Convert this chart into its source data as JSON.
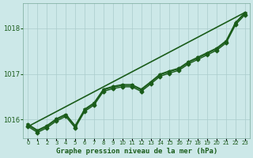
{
  "title": "Graphe pression niveau de la mer (hPa)",
  "background_color": "#cce8e8",
  "grid_color": "#aacccc",
  "line_color": "#1a5c1a",
  "text_color": "#1a5c1a",
  "xlim": [
    -0.5,
    23.5
  ],
  "ylim": [
    1015.6,
    1018.55
  ],
  "yticks": [
    1016,
    1017,
    1018
  ],
  "xticks": [
    0,
    1,
    2,
    3,
    4,
    5,
    6,
    7,
    8,
    9,
    10,
    11,
    12,
    13,
    14,
    15,
    16,
    17,
    18,
    19,
    20,
    21,
    22,
    23
  ],
  "series": [
    {
      "x": [
        0,
        1,
        2,
        3,
        4,
        5,
        6,
        7,
        8,
        9,
        10,
        11,
        12,
        13,
        14,
        15,
        16,
        17,
        18,
        19,
        20,
        21,
        22,
        23
      ],
      "y": [
        1015.85,
        1015.72,
        1015.82,
        1015.97,
        1016.07,
        1015.82,
        1016.18,
        1016.32,
        1016.62,
        1016.68,
        1016.72,
        1016.72,
        1016.62,
        1016.78,
        1016.95,
        1017.02,
        1017.08,
        1017.22,
        1017.32,
        1017.42,
        1017.52,
        1017.68,
        1018.08,
        1018.3
      ],
      "marker": "D",
      "markersize": 2.5,
      "linewidth": 1.0
    },
    {
      "x": [
        0,
        1,
        2,
        3,
        4,
        5,
        6,
        7,
        8,
        9,
        10,
        11,
        12,
        13,
        14,
        15,
        16,
        17,
        18,
        19,
        20,
        21,
        22,
        23
      ],
      "y": [
        1015.9,
        1015.77,
        1015.87,
        1016.02,
        1016.12,
        1015.87,
        1016.23,
        1016.37,
        1016.67,
        1016.73,
        1016.77,
        1016.77,
        1016.67,
        1016.83,
        1017.0,
        1017.07,
        1017.13,
        1017.27,
        1017.37,
        1017.47,
        1017.57,
        1017.73,
        1018.13,
        1018.35
      ],
      "marker": "^",
      "markersize": 2.5,
      "linewidth": 1.0
    },
    {
      "x": [
        0,
        1,
        2,
        3,
        4,
        5,
        6,
        7,
        8,
        9,
        10,
        11,
        12,
        13,
        14,
        15,
        16,
        17,
        18,
        19,
        20,
        21,
        22,
        23
      ],
      "y": [
        1015.88,
        1015.75,
        1015.85,
        1016.0,
        1016.1,
        1015.85,
        1016.21,
        1016.35,
        1016.65,
        1016.71,
        1016.75,
        1016.75,
        1016.65,
        1016.81,
        1016.98,
        1017.05,
        1017.11,
        1017.25,
        1017.35,
        1017.45,
        1017.55,
        1017.71,
        1018.11,
        1018.33
      ],
      "marker": "v",
      "markersize": 2.5,
      "linewidth": 1.0
    },
    {
      "x": [
        0,
        23
      ],
      "y": [
        1015.85,
        1018.35
      ],
      "marker": null,
      "markersize": 0,
      "linewidth": 1.2
    }
  ]
}
